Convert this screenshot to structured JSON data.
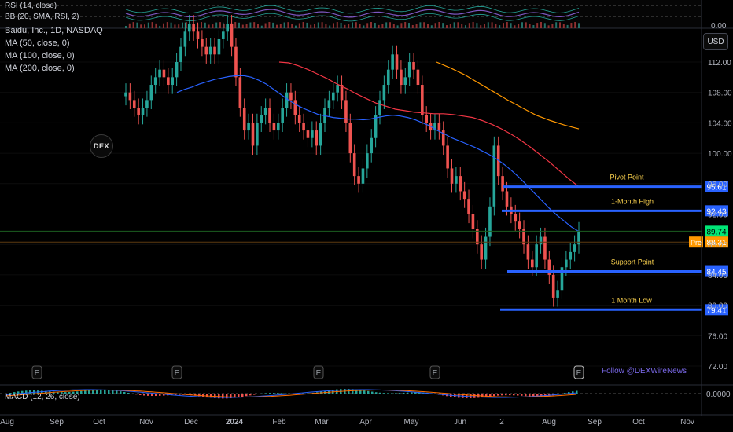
{
  "chart_data": {
    "type": "candlestick",
    "symbol_title": "Baidu, Inc., 1D, NASDAQ",
    "indicators_top": [
      "RSI (14, close)",
      "BB (20, SMA, RSI, 2)"
    ],
    "overlays": [
      "MA (50, close, 0)",
      "MA (100, close, 0)",
      "MA (200, close, 0)"
    ],
    "bottom_indicator": "MACD (12, 26, close)",
    "currency": "USD",
    "y_ticks": [
      112,
      108,
      104,
      100,
      96,
      92,
      88,
      84,
      80,
      76,
      72
    ],
    "y_tick_labels": [
      "112.00",
      "108.00",
      "104.00",
      "100.00",
      "96.00",
      "92.00",
      "88.00",
      "84.00",
      "80.00",
      "76.00",
      "72.00"
    ],
    "ylim": [
      70,
      117
    ],
    "x_labels": [
      "Aug",
      "Sep",
      "Oct",
      "Nov",
      "Dec",
      "2024",
      "Feb",
      "Mar",
      "Apr",
      "May",
      "Jun",
      "2",
      "Aug",
      "Sep",
      "Oct",
      "Nov"
    ],
    "levels": [
      {
        "name": "Pivot Point",
        "value": 95.61,
        "label": "95.61"
      },
      {
        "name": "1-Month High",
        "value": 92.43,
        "label": "92.43"
      },
      {
        "name": "Support Point",
        "value": 84.45,
        "label": "84.45"
      },
      {
        "name": "1 Month Low",
        "value": 79.41,
        "label": "79.41"
      }
    ],
    "last_price": {
      "value": 89.74,
      "label": "89.74"
    },
    "pre_market": {
      "tag": "Pre",
      "value": 88.31,
      "label": "88.31"
    },
    "rsi_pane_label": "0.00",
    "macd_pane_label": "0.0000",
    "closes": [
      108,
      107,
      106,
      105,
      106,
      107,
      109,
      110,
      111,
      110,
      109,
      110,
      112,
      114,
      116,
      117,
      116,
      115,
      114,
      113,
      114,
      113,
      115,
      116,
      117,
      114,
      110,
      106,
      103,
      104,
      101,
      104,
      105,
      106,
      104,
      103,
      104,
      106,
      108,
      107,
      105,
      104,
      103,
      102,
      103,
      101,
      104,
      106,
      107,
      108,
      109,
      107,
      104,
      100,
      97,
      96,
      98,
      100,
      102,
      105,
      107,
      109,
      111,
      113,
      111,
      109,
      110,
      112,
      111,
      109,
      105,
      104,
      103,
      104,
      103,
      101,
      98,
      96,
      97,
      95,
      94,
      92,
      90,
      88,
      86,
      89,
      93,
      101,
      97,
      95,
      93,
      92,
      91,
      90,
      88,
      86,
      85,
      88,
      89,
      86,
      84,
      81,
      82,
      85,
      86,
      87,
      88,
      89.74
    ],
    "ma50": [
      108,
      108.4,
      108.7,
      109.1,
      109.4,
      109.7,
      109.9,
      110.1,
      110.2,
      110.2,
      110,
      109.6,
      109.1,
      108.4,
      107.7,
      107,
      106.4,
      105.9,
      105.5,
      105.1,
      104.9,
      104.7,
      104.6,
      104.5,
      104.5,
      104.4,
      104.5,
      104.7,
      104.9,
      105,
      104.9,
      104.7,
      104.4,
      104,
      103.6,
      103,
      102.5,
      102,
      101.6,
      101.2,
      100.8,
      100.3,
      99.8,
      99.2,
      98.5,
      97.7,
      96.8,
      95.8,
      94.8,
      93.8,
      92.8,
      91.9,
      91.1,
      90.3,
      89.7
    ],
    "ma100": [
      112,
      111.9,
      111.5,
      111,
      110.4,
      109.8,
      109.1,
      108.5,
      107.8,
      107.2,
      106.6,
      106.2,
      105.8,
      105.6,
      105.4,
      105.3,
      105.2,
      105.2,
      105.1,
      104.9,
      104.7,
      104.3,
      103.8,
      103.2,
      102.5,
      101.7,
      100.8,
      99.8,
      98.8,
      97.7,
      96.6,
      95.6
    ],
    "ma200": [
      112,
      111.2,
      110.3,
      109.2,
      108.1,
      107,
      106,
      105,
      104.3,
      103.7,
      103.2
    ]
  },
  "watermark": "DEX",
  "event_marker": "E",
  "follow_text": "Follow @DEXWireNews",
  "colors": {
    "up": "#26a69a",
    "down": "#ef5350",
    "ma50": "#2962ff",
    "ma100": "#f23645",
    "ma200": "#ff9800",
    "level_line": "#2962ff",
    "level_text": "#ffd54f",
    "last_price": "#00e676",
    "pre_market": "#ff9800"
  }
}
